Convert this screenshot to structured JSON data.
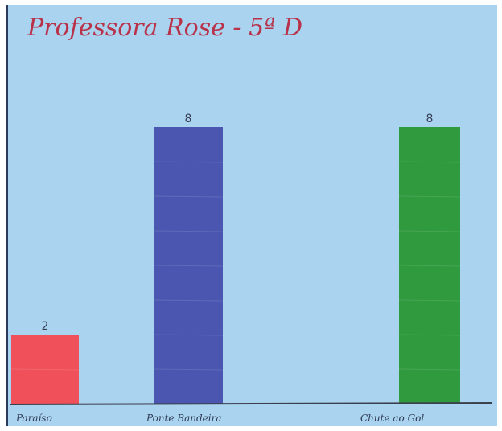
{
  "chart_data": {
    "type": "bar",
    "title": "Professora Rose - 5ª D",
    "categories": [
      "Paraíso",
      "Ponte Bandeira",
      "Chute ao Gol"
    ],
    "values": [
      2,
      8,
      8
    ],
    "value_labels": [
      "2",
      "8",
      "8"
    ],
    "colors": [
      "#f0505a",
      "#4a56b0",
      "#2f9a3e"
    ],
    "ylim": [
      0,
      8
    ],
    "grid": false,
    "legend": "none",
    "xlabel": "",
    "ylabel": ""
  },
  "colors": {
    "background": "#a9d3ee",
    "baseline": "#3a3f4c"
  }
}
